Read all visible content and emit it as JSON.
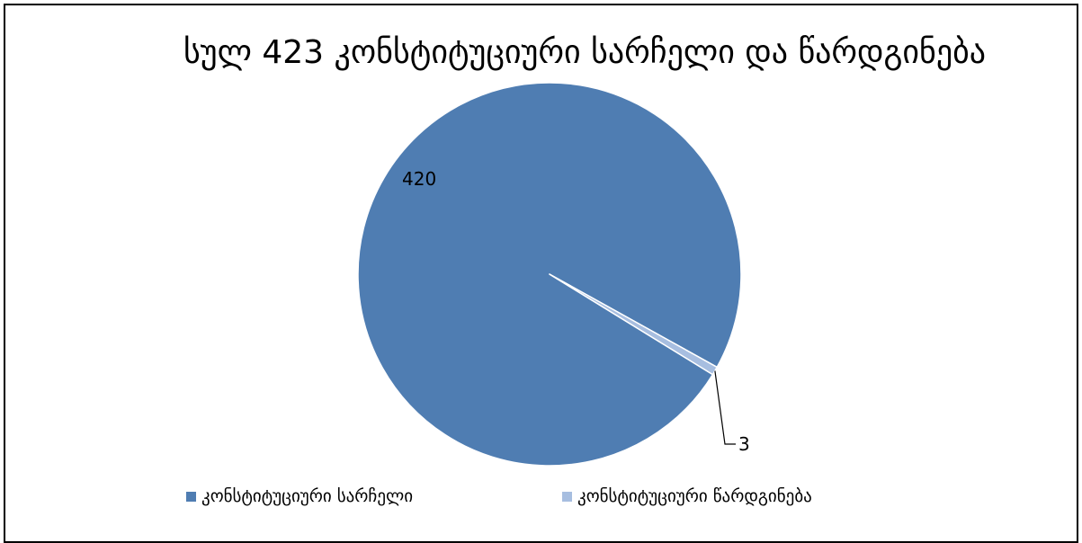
{
  "chart_data": {
    "type": "pie",
    "title": "სულ 423 კონსტიტუციური სარჩელი და წარდგინება",
    "categories": [
      "კონსტიტუციური სარჩელი",
      "კონსტიტუციური წარდგინება"
    ],
    "values": [
      420,
      3
    ],
    "data_labels": [
      "420",
      "3"
    ],
    "colors": [
      "#4F7DB2",
      "#A7BEE0"
    ],
    "legend_position": "bottom"
  }
}
